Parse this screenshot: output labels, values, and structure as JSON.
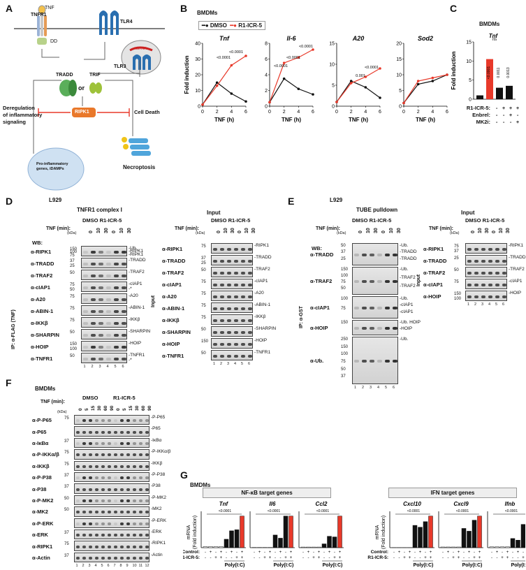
{
  "panels": {
    "a": "A",
    "b": "B",
    "c": "C",
    "d": "D",
    "e": "E",
    "f": "F",
    "g": "G"
  },
  "a": {
    "tnf": "TNF",
    "tnfr1": "TNFR1",
    "dd": "DD",
    "tlr4": "TLR4",
    "tlr3": "TLR3",
    "dsrna": "dsRNA",
    "tradd": "TRADD",
    "or": "or",
    "trif": "TRIF",
    "ripk1": "RIPK1",
    "dereg": "Deregulation\nof inflammatory\nsignaling",
    "celldeath": "Cell Death",
    "proinf": "Pro-inflammatory\ngenes, iDAMPs",
    "necro": "Necroptosis",
    "ripk3": "RIPK3",
    "mlkl": "MLKL"
  },
  "b": {
    "title": "BMDMs",
    "legend": [
      "DMSO",
      "R1-ICR-5"
    ],
    "colors": {
      "dmso": "#111111",
      "r1": "#e8392a"
    },
    "ylabel": "Fold induction",
    "xlabel": "TNF (h)",
    "pvals": {
      "tnf": [
        "<0.0001",
        "<0.0001"
      ],
      "il6": [
        "<0.0001",
        "<0.0001",
        "<0.0001"
      ],
      "a20": [
        "0.001",
        "<0.0001"
      ]
    }
  },
  "c": {
    "title": "BMDMs",
    "gene": "Tnf",
    "ylabel": "Fold induction",
    "rows": [
      {
        "label": "R1-ICR-5:",
        "vals": [
          "-",
          "+",
          "+",
          "+"
        ]
      },
      {
        "label": "Enbrel:",
        "vals": [
          "-",
          "-",
          "+",
          "-"
        ]
      },
      {
        "label": "MK2i:",
        "vals": [
          "-",
          "-",
          "-",
          "+"
        ]
      }
    ],
    "pvals": [
      "<0.0001",
      "0.0011",
      "0.0013"
    ],
    "ns": "ns"
  },
  "chart_data": [
    {
      "type": "line",
      "title": "Tnf",
      "xlabel": "TNF (h)",
      "ylabel": "Fold induction",
      "x": [
        0,
        2,
        4,
        6
      ],
      "ylim": [
        0,
        40
      ],
      "yticks": [
        0,
        10,
        20,
        30,
        40
      ],
      "series": [
        {
          "name": "DMSO",
          "values": [
            1,
            15,
            8,
            3
          ]
        },
        {
          "name": "R1-ICR-5",
          "values": [
            1,
            13,
            26,
            32
          ]
        }
      ]
    },
    {
      "type": "line",
      "title": "Il-6",
      "xlabel": "TNF (h)",
      "x": [
        0,
        2,
        4,
        6
      ],
      "ylim": [
        0,
        8
      ],
      "yticks": [
        0,
        2,
        4,
        6,
        8
      ],
      "series": [
        {
          "name": "DMSO",
          "values": [
            0.5,
            3.5,
            2.2,
            1.5
          ]
        },
        {
          "name": "R1-ICR-5",
          "values": [
            0.5,
            5.5,
            6.2,
            7.2
          ]
        }
      ]
    },
    {
      "type": "line",
      "title": "A20",
      "xlabel": "TNF (h)",
      "x": [
        0,
        2,
        4,
        6
      ],
      "ylim": [
        0,
        15
      ],
      "yticks": [
        0,
        5,
        10,
        15
      ],
      "series": [
        {
          "name": "DMSO",
          "values": [
            1,
            6,
            4.5,
            2
          ]
        },
        {
          "name": "R1-ICR-5",
          "values": [
            1,
            5.5,
            7,
            9
          ]
        }
      ]
    },
    {
      "type": "line",
      "title": "Sod2",
      "xlabel": "TNF (h)",
      "x": [
        0,
        2,
        4,
        6
      ],
      "ylim": [
        0,
        20
      ],
      "yticks": [
        0,
        5,
        10,
        15,
        20
      ],
      "series": [
        {
          "name": "DMSO",
          "values": [
            1,
            7,
            8,
            10
          ]
        },
        {
          "name": "R1-ICR-5",
          "values": [
            1,
            8,
            9,
            10
          ]
        }
      ]
    },
    {
      "type": "bar",
      "title": "Tnf",
      "ylabel": "Fold induction",
      "categories": [
        "1",
        "2",
        "3",
        "4"
      ],
      "values": [
        1,
        10.5,
        3,
        3.5
      ],
      "ylim": [
        0,
        15
      ],
      "yticks": [
        0,
        5,
        10,
        15
      ]
    },
    {
      "type": "bar",
      "title": "Tnf",
      "ylabel": "mRNA (Fold induction)",
      "categories": [
        "1",
        "2",
        "3",
        "4",
        "5",
        "6",
        "7",
        "8"
      ],
      "values": [
        1,
        1,
        1,
        1,
        8,
        16,
        17,
        30
      ]
    },
    {
      "type": "bar",
      "title": "Il6",
      "categories": [
        "1",
        "2",
        "3",
        "4",
        "5",
        "6",
        "7",
        "8"
      ],
      "values": [
        1,
        1,
        1,
        1,
        60,
        45,
        150,
        150
      ]
    },
    {
      "type": "bar",
      "title": "Ccl2",
      "categories": [
        "1",
        "2",
        "3",
        "4",
        "5",
        "6",
        "7",
        "8"
      ],
      "values": [
        1,
        1,
        1,
        1,
        6,
        18,
        17,
        50
      ]
    },
    {
      "type": "bar",
      "title": "Cxcl10",
      "categories": [
        "1",
        "2",
        "3",
        "4",
        "5",
        "6",
        "7",
        "8"
      ],
      "values": [
        1,
        1,
        1,
        1,
        240,
        220,
        280,
        340
      ]
    },
    {
      "type": "bar",
      "title": "Cxcl9",
      "categories": [
        "1",
        "2",
        "3",
        "4",
        "5",
        "6",
        "7",
        "8"
      ],
      "values": [
        1,
        1,
        1,
        1,
        28,
        24,
        40,
        46
      ]
    },
    {
      "type": "bar",
      "title": "Ifnb",
      "categories": [
        "1",
        "2",
        "3",
        "4",
        "5",
        "6",
        "7",
        "8"
      ],
      "values": [
        1,
        1,
        1,
        1,
        11,
        9,
        28,
        38
      ]
    }
  ],
  "d": {
    "cell": "L929",
    "title1": "TNFR1 complex I",
    "title2": "Input",
    "groups": "DMSO R1-ICR-5",
    "tnfmin": "TNF (min):",
    "times": [
      "0",
      "10",
      "30",
      "0",
      "10",
      "30"
    ],
    "kda": "(kDa)",
    "wb": "WB:",
    "ip": "IP: α-FLAG (TNF)",
    "input": "Input",
    "left": [
      {
        "ab": "α-RIPK1",
        "mw": [
          "150",
          "100",
          "75"
        ],
        "r": [
          "Ub.",
          "RIPK1",
          "RIPK1"
        ]
      },
      {
        "ab": "α-TRADD",
        "mw": [
          "37",
          "25"
        ],
        "r": [
          "TRADD"
        ]
      },
      {
        "ab": "α-TRAF2",
        "mw": [
          "50"
        ],
        "r": [
          "TRAF2"
        ]
      },
      {
        "ab": "α-cIAP1",
        "mw": [
          "75",
          "50"
        ],
        "r": [
          "cIAP1",
          "*"
        ]
      },
      {
        "ab": "α-A20",
        "mw": [
          "75"
        ],
        "r": [
          "A20"
        ]
      },
      {
        "ab": "α-ABIN-1",
        "mw": [
          "75"
        ],
        "r": [
          "ABIN-1"
        ]
      },
      {
        "ab": "α-IKKβ",
        "mw": [
          "75"
        ],
        "r": [
          "IKKβ"
        ]
      },
      {
        "ab": "α-SHARPIN",
        "mw": [
          "50"
        ],
        "r": [
          "SHARPIN"
        ]
      },
      {
        "ab": "α-HOIP",
        "mw": [
          "150",
          "100"
        ],
        "r": [
          "HOIP"
        ]
      },
      {
        "ab": "α-TNFR1",
        "mw": [
          "50"
        ],
        "r": [
          "TNFR1",
          "*"
        ]
      }
    ],
    "right": [
      {
        "ab": "α-RIPK1",
        "mw": [
          "75"
        ],
        "r": "RIPK1"
      },
      {
        "ab": "α-TRADD",
        "mw": [
          "37",
          "25"
        ],
        "r": "TRADD"
      },
      {
        "ab": "α-TRAF2",
        "mw": [
          "50"
        ],
        "r": "TRAF2"
      },
      {
        "ab": "α-cIAP1",
        "mw": [
          "75"
        ],
        "r": "cIAP1"
      },
      {
        "ab": "α-A20",
        "mw": [
          "75"
        ],
        "r": "A20"
      },
      {
        "ab": "α-ABIN-1",
        "mw": [
          "75"
        ],
        "r": "ABIN-1"
      },
      {
        "ab": "α-IKKβ",
        "mw": [
          "75"
        ],
        "r": "IKKβ"
      },
      {
        "ab": "α-SHARPIN",
        "mw": [
          "50"
        ],
        "r": "SHARPIN"
      },
      {
        "ab": "α-HOIP",
        "mw": [
          "150"
        ],
        "r": "HOIP"
      },
      {
        "ab": "α-TNFR1",
        "mw": [
          "50"
        ],
        "r": "TNFR1"
      }
    ],
    "lanes": [
      "1",
      "2",
      "3",
      "4",
      "5",
      "6"
    ]
  },
  "e": {
    "cell": "L929",
    "title1": "TUBE pulldown",
    "title2": "Input",
    "groups": "DMSO R1-ICR-5",
    "tnfmin": "TNF (min):",
    "times": [
      "0",
      "10",
      "30",
      "0",
      "10",
      "30"
    ],
    "kda": "(kDa)",
    "wb": "WB:",
    "ip": "IP: α-GST",
    "input": "Input",
    "left": [
      {
        "ab": "α-TRADD",
        "mw": [
          "50",
          "37",
          "25"
        ],
        "r": [
          "Ub.",
          "TRADD",
          "TRADD"
        ]
      },
      {
        "ab": "α-TRAF2",
        "mw": [
          "150",
          "100",
          "75",
          "50"
        ],
        "r": [
          "Ub.",
          "TRAF2",
          "TRAF2"
        ]
      },
      {
        "ab": "α-cIAP1",
        "mw": [
          "100",
          "75"
        ],
        "r": [
          "Ub.",
          "cIAP1",
          "cIAP1"
        ]
      },
      {
        "ab": "α-HOIP",
        "mw": [
          "150"
        ],
        "r": [
          "Ub. HOIP",
          "HOIP"
        ]
      },
      {
        "ab": "α-Ub.",
        "mw": [
          "250",
          "150",
          "100",
          "75",
          "50",
          "37"
        ],
        "r": [
          "Ub."
        ]
      }
    ],
    "right": [
      {
        "ab": "α-RIPK1",
        "mw": [
          "75",
          "37"
        ],
        "r": "RIPK1"
      },
      {
        "ab": "α-TRADD",
        "mw": [
          "25"
        ],
        "r": "TRADD"
      },
      {
        "ab": "α-TRAF2",
        "mw": [
          "50"
        ],
        "r": "TRAF2"
      },
      {
        "ab": "α-cIAP1",
        "mw": [
          "75"
        ],
        "r": "cIAP1"
      },
      {
        "ab": "α-HOIP",
        "mw": [
          "150",
          "100"
        ],
        "r": "HOIP"
      }
    ],
    "lanes": [
      "1",
      "2",
      "3",
      "4",
      "5",
      "6"
    ]
  },
  "f": {
    "title": "BMDMs",
    "tnfmin": "TNF (min):",
    "kda": "(kDa)",
    "groups": [
      "DMSO",
      "R1-ICR-5"
    ],
    "times": [
      "0",
      "5",
      "15",
      "30",
      "60",
      "90",
      "0",
      "5",
      "15",
      "30",
      "60",
      "90"
    ],
    "rows": [
      {
        "ab": "α-P-P65",
        "mw": "75",
        "r": "P-P65"
      },
      {
        "ab": "α-P65",
        "mw": "",
        "r": "P65"
      },
      {
        "ab": "α-IκBα",
        "mw": "37",
        "r": "IκBα"
      },
      {
        "ab": "α-P-IKKα/β",
        "mw": "75",
        "r": "P-IKKα/β"
      },
      {
        "ab": "α-IKKβ",
        "mw": "75",
        "r": "IKKβ"
      },
      {
        "ab": "α-P-P38",
        "mw": "37",
        "r": "P-P38"
      },
      {
        "ab": "α-P38",
        "mw": "37",
        "r": "P38"
      },
      {
        "ab": "α-P-MK2",
        "mw": "50",
        "r": "P-MK2"
      },
      {
        "ab": "α-MK2",
        "mw": "50",
        "r": "MK2"
      },
      {
        "ab": "α-P-ERK",
        "mw": "",
        "r": "P-ERK"
      },
      {
        "ab": "α-ERK",
        "mw": "37",
        "r": "ERK"
      },
      {
        "ab": "α-RIPK1",
        "mw": "75",
        "r": "RIPK1"
      },
      {
        "ab": "α-Actin",
        "mw": "37",
        "r": "Actin"
      }
    ],
    "lanes": [
      "1",
      "2",
      "3",
      "4",
      "5",
      "6",
      "7",
      "8",
      "9",
      "10",
      "11",
      "12"
    ]
  },
  "g": {
    "title": "BMDMs",
    "nfkb": "NF-κB target genes",
    "ifn": "IFN target genes",
    "ylabel1": "mRNA",
    "ylabel2": "(Fold induction)",
    "control": "Control:",
    "r1": "R1-ICR-5:",
    "polyic": "Poly(I:C)",
    "ctrl_vals": [
      "-",
      "+",
      "-",
      "+",
      "-",
      "+",
      "-",
      "+"
    ],
    "r1_vals": [
      "-",
      "-",
      "+",
      "+",
      "-",
      "-",
      "+",
      "+"
    ],
    "pval": "<0.0001",
    "genes": [
      "Tnf",
      "Il6",
      "Ccl2",
      "Cxcl10",
      "Cxcl9",
      "Ifnb"
    ]
  }
}
